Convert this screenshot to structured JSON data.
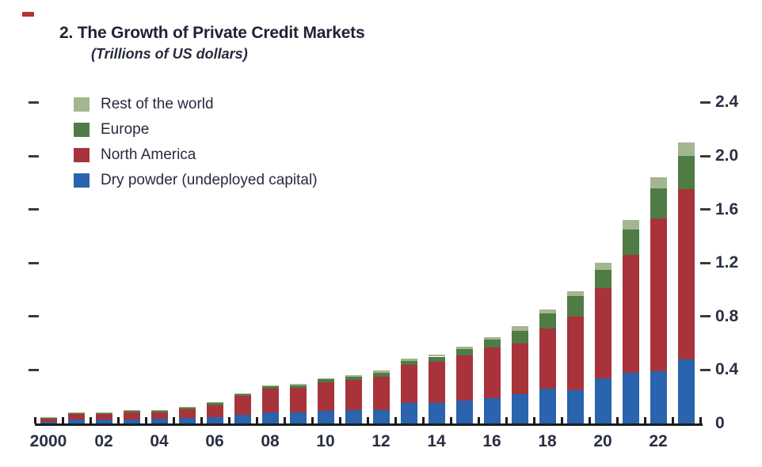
{
  "header": {
    "title": "2. The Growth of Private Credit Markets",
    "subtitle": "(Trillions of US dollars)"
  },
  "legend": {
    "items": [
      {
        "label": "Rest of the world",
        "color": "#a4b591"
      },
      {
        "label": "Europe",
        "color": "#4f7b44"
      },
      {
        "label": "North America",
        "color": "#a8333a"
      },
      {
        "label": "Dry powder (undeployed capital)",
        "color": "#2a63ae"
      }
    ]
  },
  "chart_data": {
    "type": "bar",
    "stacked": true,
    "title": "2. The Growth of Private Credit Markets",
    "subtitle": "(Trillions of US dollars)",
    "xlabel": "",
    "ylabel": "Trillions of US dollars",
    "categories": [
      "2000",
      "2001",
      "2002",
      "2003",
      "2004",
      "2005",
      "2006",
      "2007",
      "2008",
      "2009",
      "2010",
      "2011",
      "2012",
      "2013",
      "2014",
      "2015",
      "2016",
      "2017",
      "2018",
      "2019",
      "2020",
      "2021",
      "2022",
      "2023"
    ],
    "x_tick_labels": [
      "2000",
      "02",
      "04",
      "06",
      "08",
      "10",
      "12",
      "14",
      "16",
      "18",
      "20",
      "22"
    ],
    "series": [
      {
        "name": "Dry powder (undeployed capital)",
        "color": "#2a63ae",
        "values": [
          0.01,
          0.03,
          0.03,
          0.03,
          0.035,
          0.04,
          0.05,
          0.065,
          0.085,
          0.08,
          0.095,
          0.1,
          0.1,
          0.155,
          0.155,
          0.17,
          0.19,
          0.22,
          0.26,
          0.25,
          0.34,
          0.38,
          0.39,
          0.48
        ]
      },
      {
        "name": "North America",
        "color": "#a8333a",
        "values": [
          0.025,
          0.04,
          0.04,
          0.055,
          0.05,
          0.065,
          0.085,
          0.14,
          0.175,
          0.185,
          0.21,
          0.225,
          0.25,
          0.28,
          0.305,
          0.34,
          0.38,
          0.38,
          0.45,
          0.55,
          0.67,
          0.88,
          1.14,
          1.27
        ]
      },
      {
        "name": "Europe",
        "color": "#4f7b44",
        "values": [
          0.01,
          0.008,
          0.008,
          0.012,
          0.012,
          0.014,
          0.016,
          0.016,
          0.018,
          0.02,
          0.025,
          0.025,
          0.03,
          0.035,
          0.04,
          0.045,
          0.055,
          0.095,
          0.115,
          0.155,
          0.14,
          0.19,
          0.23,
          0.25
        ]
      },
      {
        "name": "Rest of the world",
        "color": "#a4b591",
        "values": [
          0.005,
          0.004,
          0.004,
          0.005,
          0.005,
          0.006,
          0.006,
          0.006,
          0.008,
          0.008,
          0.01,
          0.01,
          0.015,
          0.015,
          0.015,
          0.02,
          0.02,
          0.03,
          0.03,
          0.035,
          0.05,
          0.07,
          0.08,
          0.1
        ]
      }
    ],
    "totals": [
      0.05,
      0.082,
      0.082,
      0.102,
      0.102,
      0.125,
      0.157,
      0.227,
      0.286,
      0.293,
      0.34,
      0.36,
      0.395,
      0.485,
      0.515,
      0.575,
      0.645,
      0.725,
      0.855,
      0.99,
      1.2,
      1.52,
      1.84,
      2.1
    ],
    "ylim": [
      0,
      2.4
    ],
    "yticks": [
      0,
      0.4,
      0.8,
      1.2,
      1.6,
      2.0,
      2.4
    ],
    "ytick_labels": [
      "0",
      "0.4",
      "0.8",
      "1.2",
      "1.6",
      "2.0",
      "2.4"
    ],
    "y_axis_side": "right",
    "grid": false,
    "legend_position": "top-left"
  }
}
